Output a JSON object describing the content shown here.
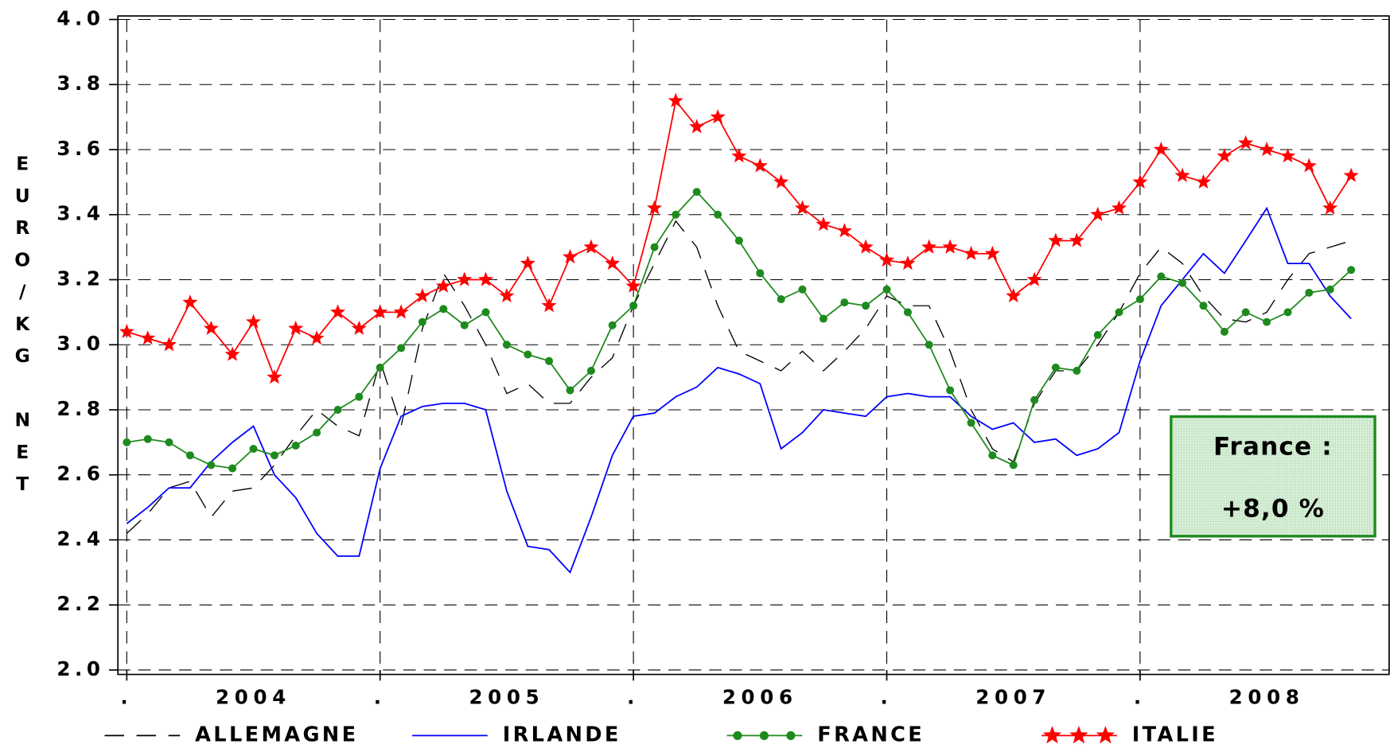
{
  "chart_data": {
    "type": "line",
    "ylabel": "EURO/KG NET",
    "annotation": [
      "France :",
      "+8,0 %"
    ],
    "annotation_color": "#1e8a1e",
    "x": [
      2004,
      2004.083,
      2004.167,
      2004.25,
      2004.333,
      2004.417,
      2004.5,
      2004.583,
      2004.667,
      2004.75,
      2004.833,
      2004.917,
      2005,
      2005.083,
      2005.167,
      2005.25,
      2005.333,
      2005.417,
      2005.5,
      2005.583,
      2005.667,
      2005.75,
      2005.833,
      2005.917,
      2006,
      2006.083,
      2006.167,
      2006.25,
      2006.333,
      2006.417,
      2006.5,
      2006.583,
      2006.667,
      2006.75,
      2006.833,
      2006.917,
      2007,
      2007.083,
      2007.167,
      2007.25,
      2007.333,
      2007.417,
      2007.5,
      2007.583,
      2007.667,
      2007.75,
      2007.833,
      2007.917,
      2008,
      2008.083,
      2008.167,
      2008.25,
      2008.333,
      2008.417,
      2008.5,
      2008.583,
      2008.667,
      2008.75,
      2008.833
    ],
    "categories": [
      "2004",
      "2005",
      "2006",
      "2007",
      "2008"
    ],
    "series": [
      {
        "name": "ALLEMAGNE",
        "color": "#000000",
        "dash": true,
        "marker": "none",
        "values": [
          2.42,
          2.48,
          2.56,
          2.58,
          2.47,
          2.55,
          2.56,
          2.63,
          2.72,
          2.8,
          2.75,
          2.72,
          2.95,
          2.75,
          3.05,
          3.22,
          3.12,
          3.0,
          2.85,
          2.88,
          2.82,
          2.82,
          2.9,
          2.96,
          3.12,
          3.25,
          3.38,
          3.3,
          3.12,
          2.98,
          2.95,
          2.92,
          2.98,
          2.92,
          2.98,
          3.05,
          3.15,
          3.12,
          3.12,
          2.98,
          2.8,
          2.68,
          2.64,
          2.82,
          2.92,
          2.92,
          3.0,
          3.1,
          3.22,
          3.3,
          3.25,
          3.15,
          3.08,
          3.07,
          3.1,
          3.2,
          3.28,
          3.3,
          3.32
        ]
      },
      {
        "name": "IRLANDE",
        "color": "#0000ff",
        "dash": false,
        "marker": "none",
        "values": [
          2.45,
          2.5,
          2.56,
          2.56,
          2.64,
          2.7,
          2.75,
          2.6,
          2.53,
          2.42,
          2.35,
          2.35,
          2.62,
          2.78,
          2.81,
          2.82,
          2.82,
          2.8,
          2.55,
          2.38,
          2.37,
          2.3,
          2.47,
          2.66,
          2.78,
          2.79,
          2.84,
          2.87,
          2.93,
          2.91,
          2.88,
          2.68,
          2.73,
          2.8,
          2.79,
          2.78,
          2.84,
          2.85,
          2.84,
          2.84,
          2.78,
          2.74,
          2.76,
          2.7,
          2.71,
          2.66,
          2.68,
          2.73,
          2.95,
          3.12,
          3.2,
          3.28,
          3.22,
          3.32,
          3.42,
          3.25,
          3.25,
          3.15,
          3.08
        ]
      },
      {
        "name": "FRANCE",
        "color": "#1e8a1e",
        "dash": false,
        "marker": "circle",
        "values": [
          2.7,
          2.71,
          2.7,
          2.66,
          2.63,
          2.62,
          2.68,
          2.66,
          2.69,
          2.73,
          2.8,
          2.84,
          2.93,
          2.99,
          3.07,
          3.11,
          3.06,
          3.1,
          3.0,
          2.97,
          2.95,
          2.86,
          2.92,
          3.06,
          3.12,
          3.3,
          3.4,
          3.47,
          3.4,
          3.32,
          3.22,
          3.14,
          3.17,
          3.08,
          3.13,
          3.12,
          3.17,
          3.1,
          3.0,
          2.86,
          2.76,
          2.66,
          2.63,
          2.83,
          2.93,
          2.92,
          3.03,
          3.1,
          3.14,
          3.21,
          3.19,
          3.12,
          3.04,
          3.1,
          3.07,
          3.1,
          3.16,
          3.17,
          3.23
        ]
      },
      {
        "name": "ITALIE",
        "color": "#ff0000",
        "dash": false,
        "marker": "star",
        "values": [
          3.04,
          3.02,
          3.0,
          3.13,
          3.05,
          2.97,
          3.07,
          2.9,
          3.05,
          3.02,
          3.1,
          3.05,
          3.1,
          3.1,
          3.15,
          3.18,
          3.2,
          3.2,
          3.15,
          3.25,
          3.12,
          3.27,
          3.3,
          3.25,
          3.18,
          3.42,
          3.75,
          3.67,
          3.7,
          3.58,
          3.55,
          3.5,
          3.42,
          3.37,
          3.35,
          3.3,
          3.26,
          3.25,
          3.3,
          3.3,
          3.28,
          3.28,
          3.15,
          3.2,
          3.32,
          3.32,
          3.4,
          3.42,
          3.5,
          3.6,
          3.52,
          3.5,
          3.58,
          3.62,
          3.6,
          3.58,
          3.55,
          3.42,
          3.52
        ]
      }
    ],
    "xlim": [
      2003.965,
      2008.983
    ],
    "xticks": [
      {
        "value": 2004,
        "label": "."
      },
      {
        "value": 2005,
        "label": "."
      },
      {
        "value": 2006,
        "label": "."
      },
      {
        "value": 2007,
        "label": "."
      },
      {
        "value": 2008,
        "label": "."
      }
    ],
    "ylim": [
      2.0,
      4.0
    ],
    "yticks": [
      {
        "value": 2.0,
        "label": "2.0"
      },
      {
        "value": 2.2,
        "label": "2.2"
      },
      {
        "value": 2.4,
        "label": "2.4"
      },
      {
        "value": 2.6,
        "label": "2.6"
      },
      {
        "value": 2.8,
        "label": "2.8"
      },
      {
        "value": 3.0,
        "label": "3.0"
      },
      {
        "value": 3.2,
        "label": "3.2"
      },
      {
        "value": 3.4,
        "label": "3.4"
      },
      {
        "value": 3.6,
        "label": "3.6"
      },
      {
        "value": 3.8,
        "label": "3.8"
      },
      {
        "value": 4.0,
        "label": "4.0"
      }
    ],
    "grid": true,
    "legend": "bottom"
  }
}
